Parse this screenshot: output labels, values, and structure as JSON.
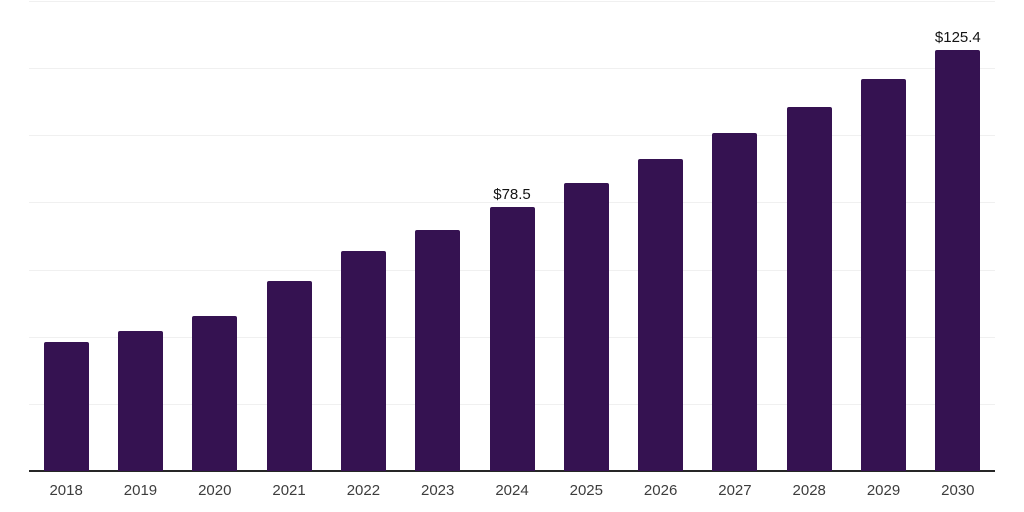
{
  "chart_data": {
    "type": "bar",
    "title": "",
    "xlabel": "",
    "ylabel": "",
    "categories": [
      "2018",
      "2019",
      "2020",
      "2021",
      "2022",
      "2023",
      "2024",
      "2025",
      "2026",
      "2027",
      "2028",
      "2029",
      "2030"
    ],
    "values": [
      38.3,
      41.6,
      46.1,
      56.5,
      65.4,
      71.9,
      78.5,
      85.9,
      93.0,
      100.8,
      108.5,
      116.8,
      125.4
    ],
    "labeled_points": [
      {
        "category": "2024",
        "label": "$78.5"
      },
      {
        "category": "2030",
        "label": "$125.4"
      }
    ],
    "value_prefix": "$",
    "ylim": [
      0,
      140
    ],
    "gridline_step": 20,
    "grid": true,
    "legend_position": "none",
    "y_tick_labels_visible": false,
    "colors": {
      "bar": "#351251",
      "gridline": "#f0f0f0",
      "axis": "#262626",
      "tick_label": "#3d3d3d",
      "data_label": "#141414",
      "background": "#ffffff"
    }
  }
}
